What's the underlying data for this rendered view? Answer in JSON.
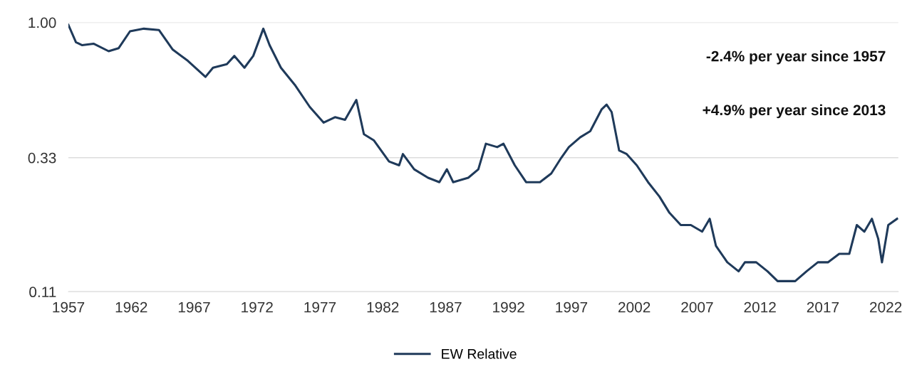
{
  "chart_data": {
    "type": "line",
    "log": true,
    "grid": "y",
    "legend": "bottom",
    "marker": "none",
    "line_style": "solid",
    "xlim": [
      1957,
      2023
    ],
    "xticks": [
      1957,
      1962,
      1967,
      1972,
      1977,
      1982,
      1987,
      1992,
      1997,
      2002,
      2007,
      2012,
      2017,
      2022
    ],
    "ylim": [
      0.11,
      1.0
    ],
    "yticks": [
      {
        "value": 0.11,
        "label": "0.11"
      },
      {
        "value": 0.33,
        "label": "0.33"
      },
      {
        "value": 1.0,
        "label": "1.00"
      }
    ],
    "annotations": [
      "-2.4% per year since 1957",
      "+4.9% per year since 2013"
    ],
    "series": [
      {
        "name": "EW Relative",
        "color": "#1f3a5a",
        "x": [
          1957.0,
          1957.6,
          1958.1,
          1959.0,
          1960.2,
          1961.0,
          1961.9,
          1963.0,
          1964.2,
          1965.3,
          1966.5,
          1967.9,
          1968.5,
          1969.6,
          1970.2,
          1971.0,
          1971.7,
          1972.5,
          1973.0,
          1973.9,
          1975.0,
          1976.2,
          1977.3,
          1978.2,
          1979.0,
          1979.9,
          1980.5,
          1981.3,
          1982.5,
          1983.3,
          1983.6,
          1984.5,
          1985.6,
          1986.5,
          1987.1,
          1987.6,
          1988.8,
          1989.6,
          1990.2,
          1991.1,
          1991.6,
          1992.5,
          1993.4,
          1994.5,
          1995.4,
          1996.2,
          1996.8,
          1997.7,
          1998.5,
          1999.4,
          1999.8,
          2000.2,
          2000.8,
          2001.4,
          2002.2,
          2003.1,
          2004.0,
          2004.8,
          2005.7,
          2006.5,
          2007.4,
          2008.0,
          2008.5,
          2009.4,
          2010.3,
          2010.8,
          2011.7,
          2012.6,
          2013.4,
          2014.3,
          2014.8,
          2015.7,
          2016.6,
          2017.4,
          2018.3,
          2019.1,
          2019.7,
          2020.3,
          2020.9,
          2021.4,
          2021.7,
          2022.2,
          2022.9
        ],
        "values": [
          0.98,
          0.85,
          0.83,
          0.84,
          0.79,
          0.81,
          0.93,
          0.95,
          0.94,
          0.8,
          0.73,
          0.64,
          0.69,
          0.71,
          0.76,
          0.69,
          0.76,
          0.95,
          0.83,
          0.69,
          0.6,
          0.5,
          0.44,
          0.46,
          0.45,
          0.53,
          0.4,
          0.38,
          0.32,
          0.31,
          0.34,
          0.3,
          0.28,
          0.27,
          0.3,
          0.27,
          0.28,
          0.3,
          0.37,
          0.36,
          0.37,
          0.31,
          0.27,
          0.27,
          0.29,
          0.33,
          0.36,
          0.39,
          0.41,
          0.49,
          0.51,
          0.48,
          0.35,
          0.34,
          0.31,
          0.27,
          0.24,
          0.21,
          0.19,
          0.19,
          0.18,
          0.2,
          0.16,
          0.14,
          0.13,
          0.14,
          0.14,
          0.13,
          0.12,
          0.12,
          0.12,
          0.13,
          0.14,
          0.14,
          0.15,
          0.15,
          0.19,
          0.18,
          0.2,
          0.17,
          0.14,
          0.19,
          0.2
        ]
      }
    ]
  }
}
